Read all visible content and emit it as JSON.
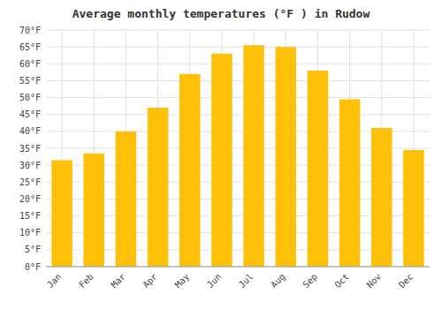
{
  "chart_data": {
    "type": "bar",
    "title": "Average monthly temperatures (°F ) in Rudow",
    "categories": [
      "Jan",
      "Feb",
      "Mar",
      "Apr",
      "May",
      "Jun",
      "Jul",
      "Aug",
      "Sep",
      "Oct",
      "Nov",
      "Dec"
    ],
    "values": [
      31.5,
      33.5,
      40.0,
      47.0,
      57.0,
      63.0,
      65.5,
      65.0,
      58.0,
      49.5,
      41.0,
      34.5
    ],
    "color": "#FFC107",
    "ylim": [
      0,
      70
    ],
    "yticks": [
      {
        "value": 0,
        "label": "0°F"
      },
      {
        "value": 5,
        "label": "5°F"
      },
      {
        "value": 10,
        "label": "10°F"
      },
      {
        "value": 15,
        "label": "15°F"
      },
      {
        "value": 20,
        "label": "20°F"
      },
      {
        "value": 25,
        "label": "25°F"
      },
      {
        "value": 30,
        "label": "30°F"
      },
      {
        "value": 35,
        "label": "35°F"
      },
      {
        "value": 40,
        "label": "40°F"
      },
      {
        "value": 45,
        "label": "45°F"
      },
      {
        "value": 50,
        "label": "50°F"
      },
      {
        "value": 55,
        "label": "55°F"
      },
      {
        "value": 60,
        "label": "60°F"
      },
      {
        "value": 65,
        "label": "65°F"
      },
      {
        "value": 70,
        "label": "70°F"
      }
    ],
    "grid": true
  }
}
